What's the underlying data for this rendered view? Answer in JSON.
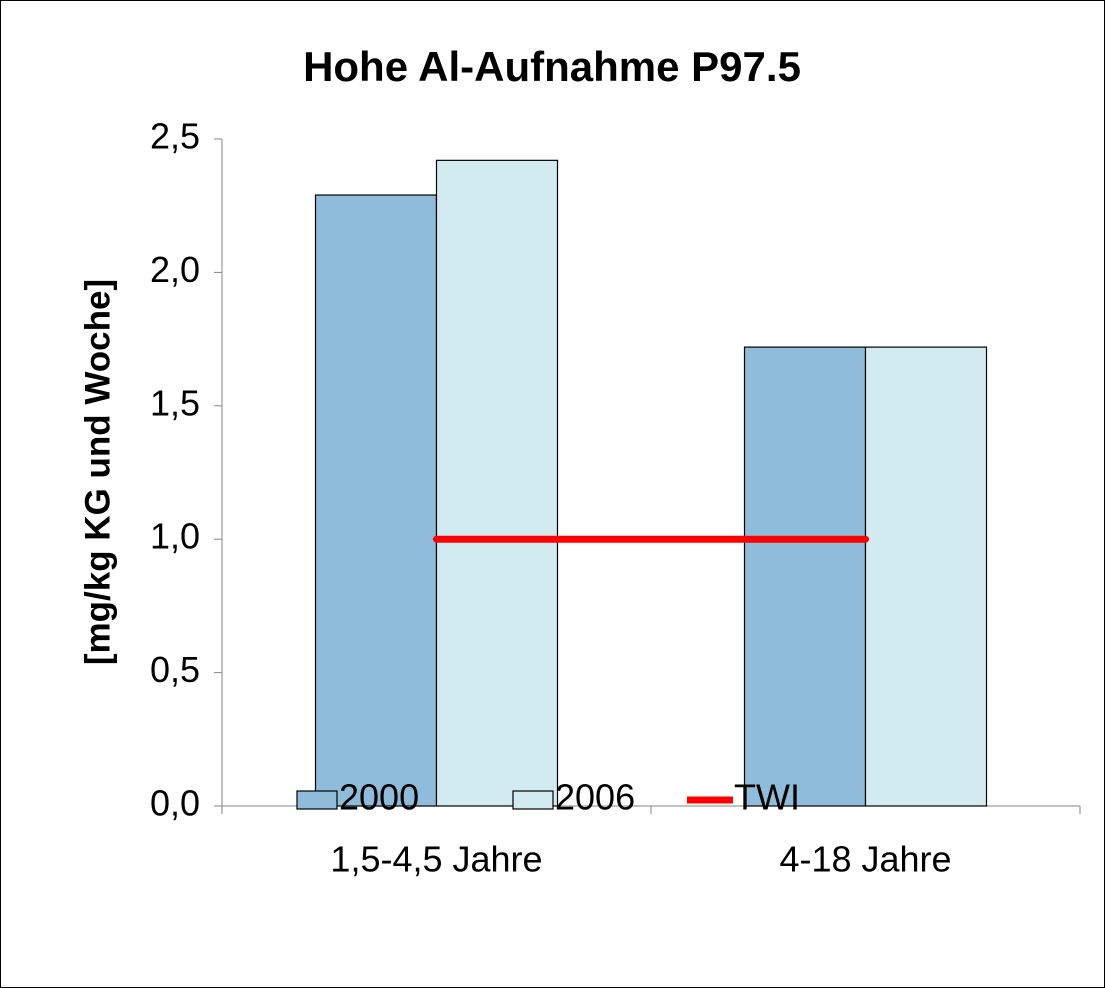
{
  "chart_data": {
    "type": "bar",
    "title": "Hohe Al-Aufnahme P97.5",
    "y_label": "[mg/kg KG und Woche]",
    "categories": [
      "1,5-4,5 Jahre",
      "4-18 Jahre"
    ],
    "series": [
      {
        "name": "2000",
        "color": "#8fbcdb",
        "values": [
          2.29,
          1.72
        ]
      },
      {
        "name": "2006",
        "color": "#d2ebf1",
        "values": [
          2.42,
          1.72
        ]
      },
      {
        "name": "TWI",
        "color": "#ff0000",
        "type": "line",
        "values": [
          1.0,
          1.0
        ]
      }
    ],
    "ylim": [
      0,
      2.5
    ],
    "yticks": [
      {
        "value": 0,
        "label": "0,0"
      },
      {
        "value": 0.5,
        "label": "0,5"
      },
      {
        "value": 1.0,
        "label": "1,0"
      },
      {
        "value": 1.5,
        "label": "1,5"
      },
      {
        "value": 2.0,
        "label": "2,0"
      },
      {
        "value": 2.5,
        "label": "2,5"
      }
    ],
    "grid": false,
    "legend": "bottom"
  }
}
